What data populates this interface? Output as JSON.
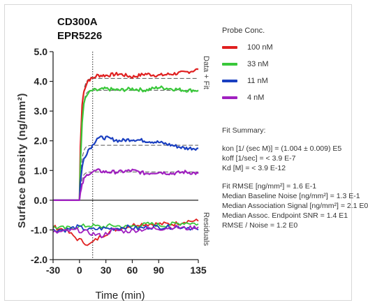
{
  "chart_data": {
    "type": "line",
    "title_lines": [
      "CD300A",
      "EPR5226"
    ],
    "xlabel": "Time (min)",
    "ylabel": "Surface Density (ng/mm²)",
    "xlim": [
      -30,
      135
    ],
    "ylim": [
      -2.0,
      5.0
    ],
    "x_ticks": [
      -30,
      0,
      30,
      60,
      90,
      135
    ],
    "x_tick_labels": [
      "-30",
      "0",
      "30",
      "60",
      "90",
      "135"
    ],
    "y_ticks": [
      -2,
      -1,
      0,
      1,
      2,
      3,
      4,
      5
    ],
    "y_tick_labels": [
      "-2.0",
      "-1.0",
      "0.0",
      "1.0",
      "2.0",
      "3.0",
      "4.0",
      "5.0"
    ],
    "dissociation_start": 15,
    "panel_labels": [
      "Data + Fit",
      "Residuals"
    ],
    "legend_title": "Probe Conc.",
    "legend_placement": "right",
    "series": [
      {
        "name": "100 nM",
        "color": "#e02020",
        "x": [
          -30,
          0,
          1,
          3,
          5,
          10,
          15,
          20,
          30,
          45,
          60,
          75,
          90,
          105,
          120,
          135
        ],
        "y": [
          0,
          0,
          1.8,
          3.2,
          3.7,
          4.05,
          4.1,
          4.2,
          4.2,
          4.25,
          4.15,
          4.25,
          4.2,
          4.25,
          4.3,
          4.4
        ],
        "residual": [
          -0.9,
          -1.0,
          -1.3,
          -1.5,
          -1.2,
          -1.0,
          -0.9,
          -0.8,
          -0.8,
          -0.8,
          -0.8,
          -0.7,
          -0.7
        ]
      },
      {
        "name": "33 nM",
        "color": "#39c83a",
        "x": [
          -30,
          0,
          1,
          3,
          5,
          10,
          15,
          20,
          30,
          45,
          60,
          75,
          90,
          105,
          120,
          135
        ],
        "y": [
          0,
          0,
          1.2,
          2.6,
          3.3,
          3.6,
          3.7,
          3.7,
          3.75,
          3.7,
          3.75,
          3.7,
          3.8,
          3.75,
          3.7,
          3.7
        ],
        "residual": [
          -0.9,
          -0.95,
          -0.9,
          -0.85,
          -0.9,
          -0.85,
          -0.9,
          -0.85,
          -0.8,
          -0.85,
          -0.8,
          -0.75,
          -0.8
        ]
      },
      {
        "name": "11 nM",
        "color": "#1a3fc0",
        "x": [
          -30,
          0,
          1,
          3,
          5,
          10,
          15,
          20,
          30,
          45,
          60,
          75,
          90,
          105,
          120,
          135
        ],
        "y": [
          0,
          0,
          0.6,
          1.1,
          1.4,
          1.7,
          1.85,
          2.1,
          2.1,
          2.0,
          2.05,
          2.0,
          1.95,
          1.85,
          1.75,
          1.75
        ],
        "residual": [
          -1.0,
          -1.0,
          -0.9,
          -1.0,
          -0.95,
          -0.95,
          -0.9,
          -0.95,
          -0.9,
          -0.9,
          -0.9,
          -0.9,
          -1.0
        ]
      },
      {
        "name": "4 nM",
        "color": "#a020c0",
        "x": [
          -30,
          0,
          1,
          3,
          5,
          10,
          15,
          20,
          30,
          45,
          60,
          75,
          90,
          105,
          120,
          135
        ],
        "y": [
          0,
          0,
          0.25,
          0.5,
          0.7,
          0.9,
          0.95,
          1.0,
          0.95,
          0.95,
          1.0,
          0.9,
          0.95,
          0.9,
          0.95,
          0.9
        ],
        "residual": [
          -1.1,
          -1.05,
          -1.0,
          -1.1,
          -1.2,
          -1.0,
          -1.05,
          -1.0,
          -0.95,
          -0.95,
          -0.9,
          -0.95,
          -0.9
        ]
      }
    ],
    "fit_summary": {
      "title": "Fit Summary:",
      "lines_a": [
        "kon  [1/ (sec M)]  =  (1.004 ± 0.009) E5",
        "koff  [1/sec]  =  < 3.9 E-7",
        "Kd  [M]  =  < 3.9 E-12"
      ],
      "lines_b": [
        "Fit RMSE [ng/mm²]  =  1.6 E-1",
        "Median Baseline Noise [ng/mm²]  =  1.3 E-1",
        "Median Association Signal [ng/mm²]  =  2.1 E0",
        "Median Assoc. Endpoint SNR  =  1.4 E1",
        "RMSE / Noise  =  1.2 E0"
      ]
    }
  }
}
